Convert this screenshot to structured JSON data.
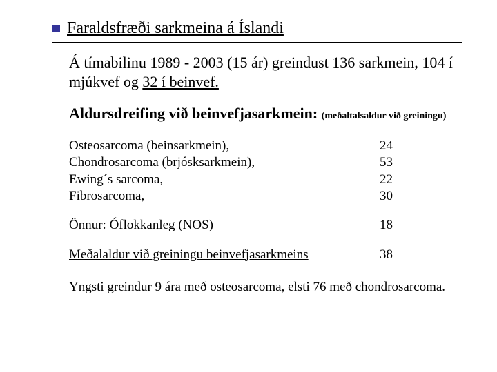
{
  "title": "Faraldsfræði sarkmeina á Íslandi",
  "intro_part1": "Á tímabilinu 1989  - 2003 (15 ár) greindust 136 sarkmein, 104 í mjúkvef og ",
  "intro_beinvef": "32 í beinvef.",
  "subhead_bold": "Aldursdreifing við beinvefjasarkmein:",
  "subhead_note": "(meðaltalsaldur við greiningu)",
  "rows_group1": [
    {
      "label": "Osteosarcoma (beinsarkmein),",
      "value": "24"
    },
    {
      "label": "Chondrosarcoma (brjósksarkmein),",
      "value": "53"
    },
    {
      "label": "Ewing´s sarcoma,",
      "value": "22"
    },
    {
      "label": "Fibrosarcoma,",
      "value": "30"
    }
  ],
  "row_other": {
    "label": "Önnur: Óflokkanleg (NOS)",
    "value": "18"
  },
  "row_avg": {
    "label": "Meðalaldur við greiningu beinvefjasarkmeins",
    "value": "38"
  },
  "footer": "Yngsti greindur 9 ára með osteosarcoma, elsti 76 með chondrosarcoma.",
  "colors": {
    "bullet": "#333399",
    "text": "#000000",
    "background": "#ffffff",
    "rule": "#000000"
  },
  "fonts": {
    "family": "Times New Roman",
    "title_size_pt": 18,
    "body_size_pt": 16,
    "note_size_pt": 10
  }
}
